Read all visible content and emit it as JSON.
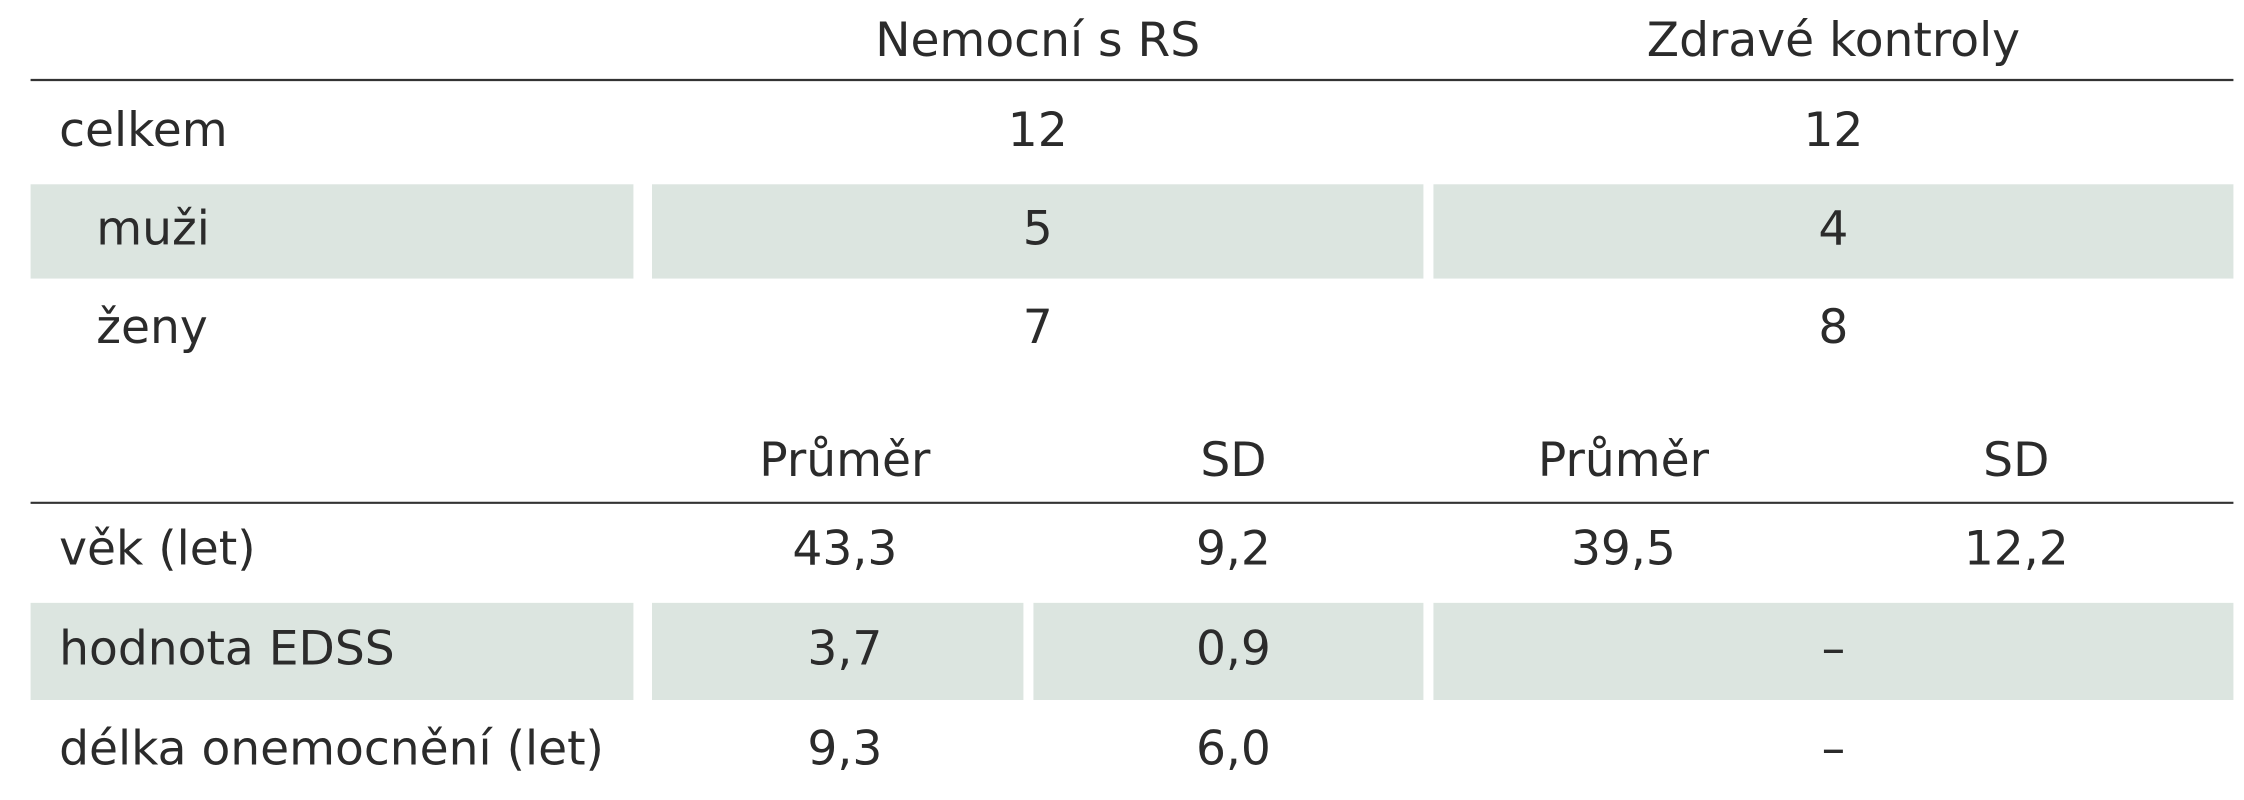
{
  "table1": {
    "columns": [
      "Nemocní s RS",
      "Zdravé kontroly"
    ],
    "rows": [
      {
        "label": "celkem",
        "values": [
          12,
          12
        ]
      },
      {
        "label": "muži",
        "values": [
          5,
          4
        ]
      },
      {
        "label": "ženy",
        "values": [
          7,
          8
        ]
      }
    ]
  },
  "table2": {
    "columns": [
      "Průměr",
      "SD",
      "Průměr",
      "SD"
    ],
    "rows": [
      {
        "label": "věk (let)",
        "values": [
          "43,3",
          "9,2",
          "39,5",
          "12,2"
        ]
      },
      {
        "label": "hodnota EDSS",
        "values": [
          "3,7",
          "0,9",
          "–"
        ]
      },
      {
        "label": "délka onemocnění (let)",
        "values": [
          "9,3",
          "6,0",
          "–"
        ]
      }
    ]
  }
}
